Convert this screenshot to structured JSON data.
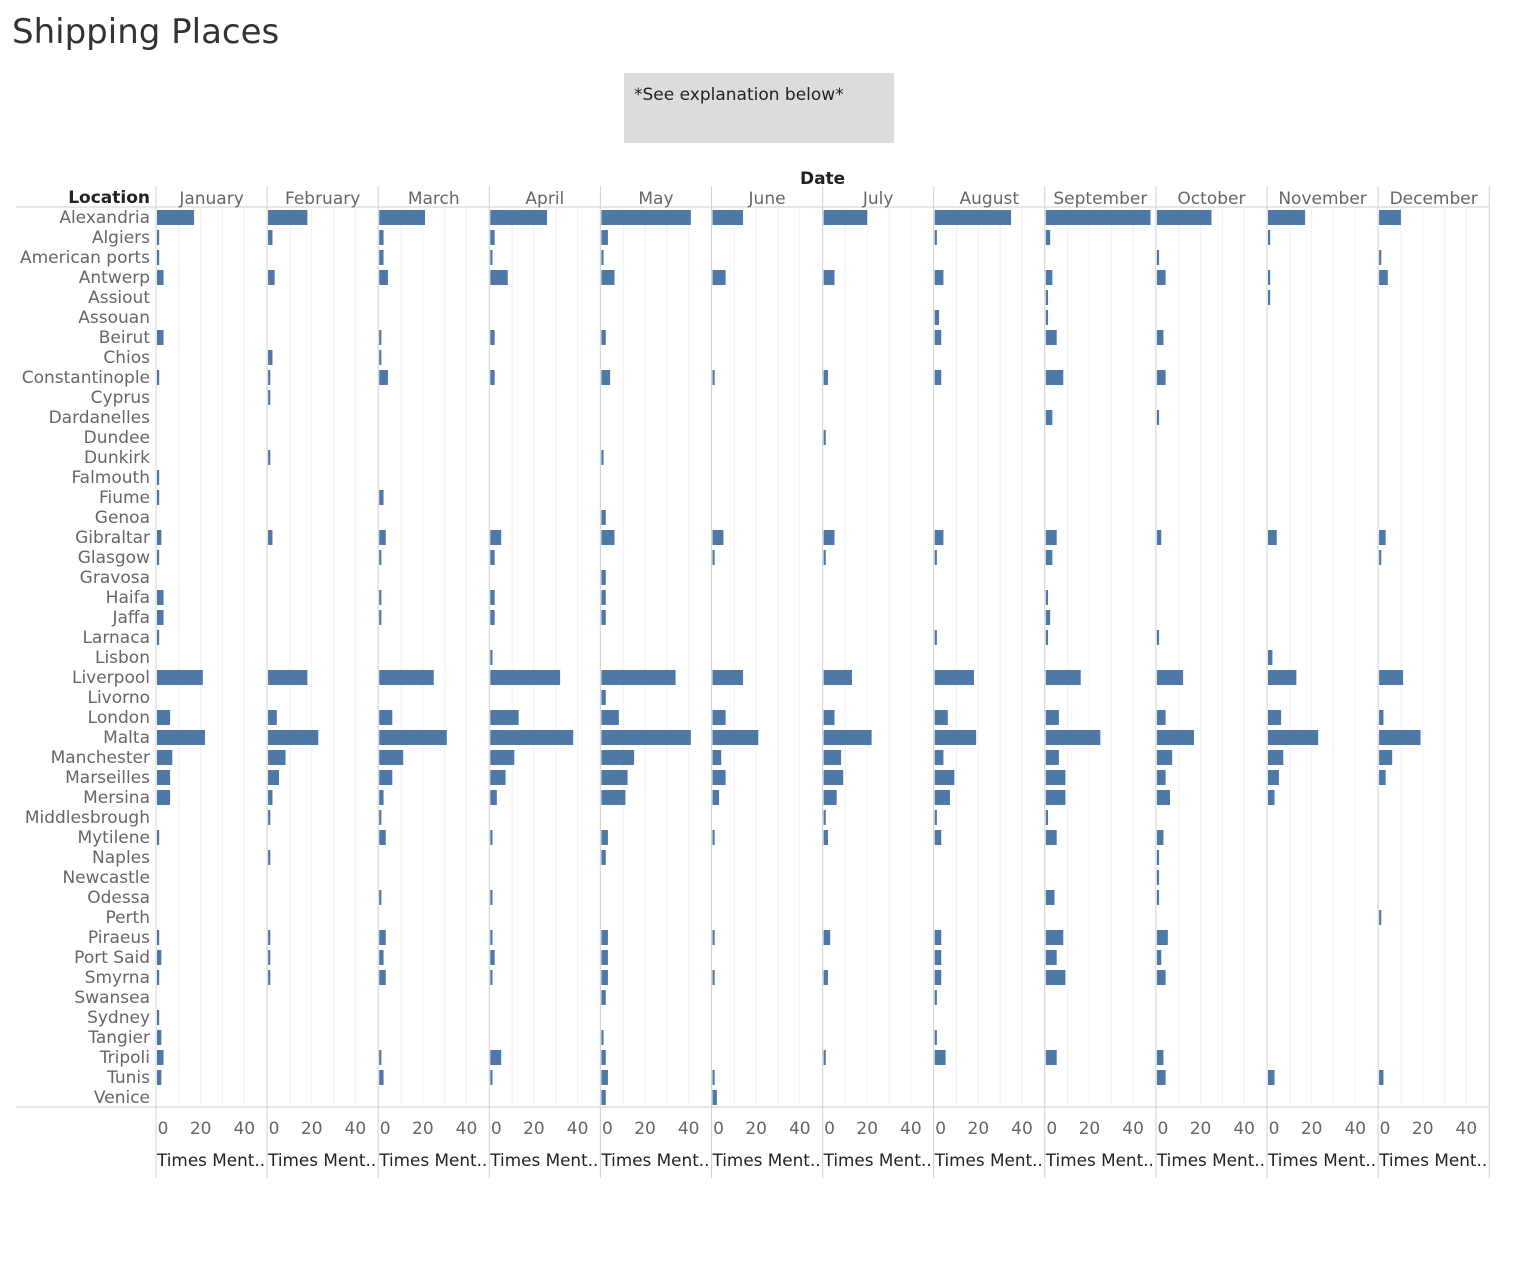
{
  "title": "Shipping Places",
  "note": "*See explanation below*",
  "chart_data": {
    "type": "bar",
    "orientation": "horizontal",
    "column_header": "Date",
    "row_header": "Location",
    "measure_label": "Times Ment..",
    "x_range": [
      0,
      50
    ],
    "x_ticks": [
      0,
      20,
      40
    ],
    "grid": true,
    "bar_color": "#4e79a7",
    "months": [
      "January",
      "February",
      "March",
      "April",
      "May",
      "June",
      "July",
      "August",
      "September",
      "October",
      "November",
      "December"
    ],
    "locations": [
      "Alexandria",
      "Algiers",
      "American ports",
      "Antwerp",
      "Assiout",
      "Assouan",
      "Beirut",
      "Chios",
      "Constantinople",
      "Cyprus",
      "Dardanelles",
      "Dundee",
      "Dunkirk",
      "Falmouth",
      "Fiume",
      "Genoa",
      "Gibraltar",
      "Glasgow",
      "Gravosa",
      "Haifa",
      "Jaffa",
      "Larnaca",
      "Lisbon",
      "Liverpool",
      "Livorno",
      "London",
      "Malta",
      "Manchester",
      "Marseilles",
      "Mersina",
      "Middlesbrough",
      "Mytilene",
      "Naples",
      "Newcastle",
      "Odessa",
      "Perth",
      "Piraeus",
      "Port Said",
      "Smyrna",
      "Swansea",
      "Sydney",
      "Tangier",
      "Tripoli",
      "Tunis",
      "Venice"
    ],
    "values": {
      "Alexandria": [
        17,
        18,
        21,
        26,
        41,
        14,
        20,
        35,
        48,
        25,
        17,
        10
      ],
      "Algiers": [
        1,
        2,
        2,
        2,
        3,
        0,
        0,
        1,
        2,
        0,
        1,
        0
      ],
      "American ports": [
        1,
        0,
        2,
        1,
        1,
        0,
        0,
        0,
        0,
        1,
        0,
        1
      ],
      "Antwerp": [
        3,
        3,
        4,
        8,
        6,
        6,
        5,
        4,
        3,
        4,
        1,
        4
      ],
      "Assiout": [
        0,
        0,
        0,
        0,
        0,
        0,
        0,
        0,
        1,
        0,
        1,
        0
      ],
      "Assouan": [
        0,
        0,
        0,
        0,
        0,
        0,
        0,
        2,
        1,
        0,
        0,
        0
      ],
      "Beirut": [
        3,
        0,
        1,
        2,
        2,
        0,
        0,
        3,
        5,
        3,
        0,
        0
      ],
      "Chios": [
        0,
        2,
        1,
        0,
        0,
        0,
        0,
        0,
        0,
        0,
        0,
        0
      ],
      "Constantinople": [
        1,
        1,
        4,
        2,
        4,
        1,
        2,
        3,
        8,
        4,
        0,
        0
      ],
      "Cyprus": [
        0,
        1,
        0,
        0,
        0,
        0,
        0,
        0,
        0,
        0,
        0,
        0
      ],
      "Dardanelles": [
        0,
        0,
        0,
        0,
        0,
        0,
        0,
        0,
        3,
        1,
        0,
        0
      ],
      "Dundee": [
        0,
        0,
        0,
        0,
        0,
        0,
        1,
        0,
        0,
        0,
        0,
        0
      ],
      "Dunkirk": [
        0,
        1,
        0,
        0,
        1,
        0,
        0,
        0,
        0,
        0,
        0,
        0
      ],
      "Falmouth": [
        1,
        0,
        0,
        0,
        0,
        0,
        0,
        0,
        0,
        0,
        0,
        0
      ],
      "Fiume": [
        1,
        0,
        2,
        0,
        0,
        0,
        0,
        0,
        0,
        0,
        0,
        0
      ],
      "Genoa": [
        0,
        0,
        0,
        0,
        2,
        0,
        0,
        0,
        0,
        0,
        0,
        0
      ],
      "Gibraltar": [
        2,
        2,
        3,
        5,
        6,
        5,
        5,
        4,
        5,
        2,
        4,
        3
      ],
      "Glasgow": [
        1,
        0,
        1,
        2,
        0,
        1,
        1,
        1,
        3,
        0,
        0,
        1
      ],
      "Gravosa": [
        0,
        0,
        0,
        0,
        2,
        0,
        0,
        0,
        0,
        0,
        0,
        0
      ],
      "Haifa": [
        3,
        0,
        1,
        2,
        2,
        0,
        0,
        0,
        1,
        0,
        0,
        0
      ],
      "Jaffa": [
        3,
        0,
        1,
        2,
        2,
        0,
        0,
        0,
        2,
        0,
        0,
        0
      ],
      "Larnaca": [
        1,
        0,
        0,
        0,
        0,
        0,
        0,
        1,
        1,
        1,
        0,
        0
      ],
      "Lisbon": [
        0,
        0,
        0,
        1,
        0,
        0,
        0,
        0,
        0,
        0,
        2,
        0
      ],
      "Liverpool": [
        21,
        18,
        25,
        32,
        34,
        14,
        13,
        18,
        16,
        12,
        13,
        11
      ],
      "Livorno": [
        0,
        0,
        0,
        0,
        2,
        0,
        0,
        0,
        0,
        0,
        0,
        0
      ],
      "London": [
        6,
        4,
        6,
        13,
        8,
        6,
        5,
        6,
        6,
        4,
        6,
        2
      ],
      "Malta": [
        22,
        23,
        31,
        38,
        41,
        21,
        22,
        19,
        25,
        17,
        23,
        19
      ],
      "Manchester": [
        7,
        8,
        11,
        11,
        15,
        4,
        8,
        4,
        6,
        7,
        7,
        6
      ],
      "Marseilles": [
        6,
        5,
        6,
        7,
        12,
        6,
        9,
        9,
        9,
        4,
        5,
        3
      ],
      "Mersina": [
        6,
        2,
        2,
        3,
        11,
        3,
        6,
        7,
        9,
        6,
        3,
        0
      ],
      "Middlesbrough": [
        0,
        1,
        1,
        0,
        0,
        0,
        1,
        1,
        1,
        0,
        0,
        0
      ],
      "Mytilene": [
        1,
        0,
        3,
        1,
        3,
        1,
        2,
        3,
        5,
        3,
        0,
        0
      ],
      "Naples": [
        0,
        1,
        0,
        0,
        2,
        0,
        0,
        0,
        0,
        1,
        0,
        0
      ],
      "Newcastle": [
        0,
        0,
        0,
        0,
        0,
        0,
        0,
        0,
        0,
        1,
        0,
        0
      ],
      "Odessa": [
        0,
        0,
        1,
        1,
        0,
        0,
        0,
        0,
        4,
        1,
        0,
        0
      ],
      "Perth": [
        0,
        0,
        0,
        0,
        0,
        0,
        0,
        0,
        0,
        0,
        0,
        1
      ],
      "Piraeus": [
        1,
        1,
        3,
        1,
        3,
        1,
        3,
        3,
        8,
        5,
        0,
        0
      ],
      "Port Said": [
        2,
        1,
        2,
        2,
        3,
        0,
        0,
        3,
        5,
        2,
        0,
        0
      ],
      "Smyrna": [
        1,
        1,
        3,
        1,
        3,
        1,
        2,
        3,
        9,
        4,
        0,
        0
      ],
      "Swansea": [
        0,
        0,
        0,
        0,
        2,
        0,
        0,
        1,
        0,
        0,
        0,
        0
      ],
      "Sydney": [
        1,
        0,
        0,
        0,
        0,
        0,
        0,
        0,
        0,
        0,
        0,
        0
      ],
      "Tangier": [
        2,
        0,
        0,
        0,
        1,
        0,
        0,
        1,
        0,
        0,
        0,
        0
      ],
      "Tripoli": [
        3,
        0,
        1,
        5,
        2,
        0,
        1,
        5,
        5,
        3,
        0,
        0
      ],
      "Tunis": [
        2,
        0,
        2,
        1,
        3,
        1,
        0,
        0,
        0,
        4,
        3,
        2
      ],
      "Venice": [
        0,
        0,
        0,
        0,
        2,
        2,
        0,
        0,
        0,
        0,
        0,
        0
      ]
    }
  }
}
